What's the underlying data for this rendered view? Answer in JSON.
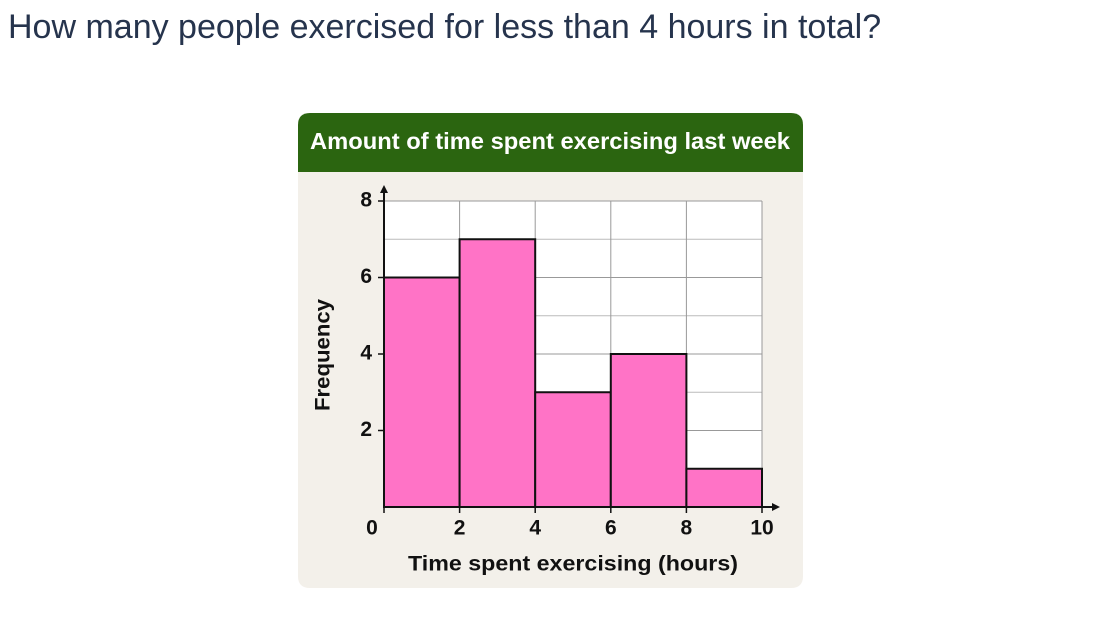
{
  "question": "How many people exercised for less than 4 hours in total?",
  "chart_data": {
    "type": "histogram",
    "title": "Amount of time spent exercising last week",
    "x_label": "Time spent exercising (hours)",
    "y_label": "Frequency",
    "bins": [
      0,
      2,
      4,
      6,
      8,
      10
    ],
    "values": [
      6,
      7,
      3,
      4,
      1
    ],
    "color": "#ff73c6",
    "xlim": [
      0,
      10
    ],
    "ylim": [
      0,
      8
    ],
    "xticks": [
      0,
      2,
      4,
      6,
      8,
      10
    ],
    "yticks": [
      2,
      4,
      6,
      8
    ],
    "y_minor_grid": [
      1,
      3,
      5,
      7
    ],
    "grid": true
  }
}
